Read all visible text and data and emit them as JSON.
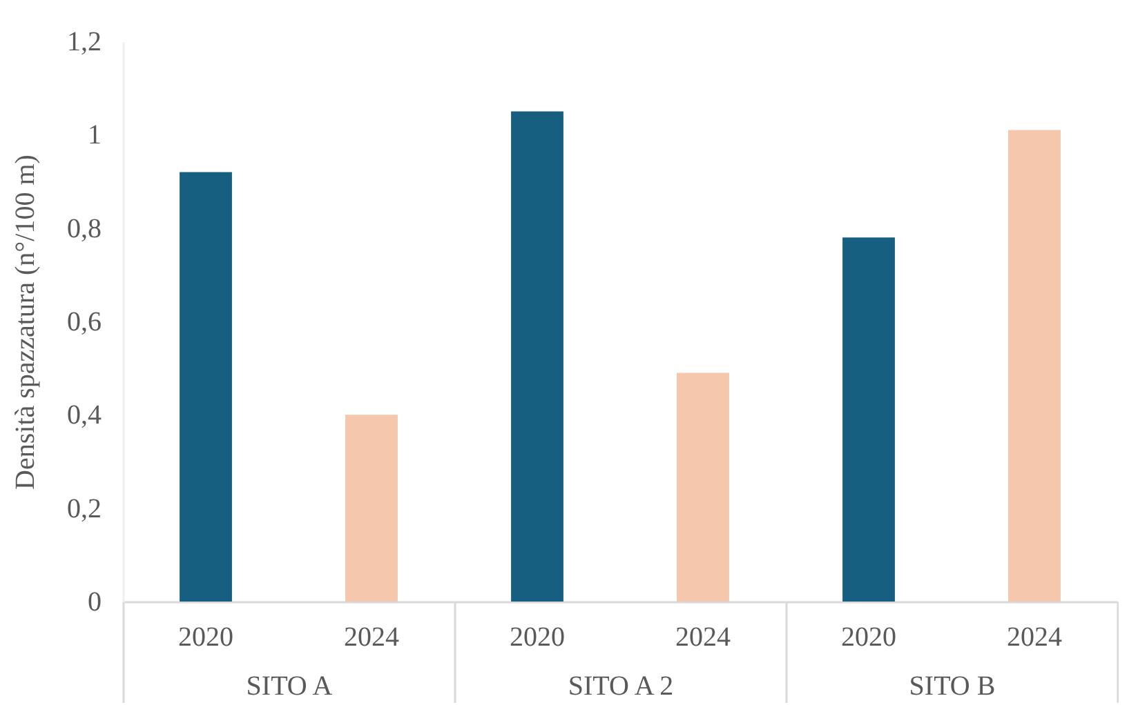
{
  "chart_data": {
    "type": "bar",
    "ylabel": "Densità spazzatura  (n°/100 m)",
    "categories": [
      "SITO A",
      "SITO A  2",
      "SITO B"
    ],
    "series": [
      {
        "name": "2020",
        "color": "#175f80",
        "values": [
          0.92,
          1.05,
          0.78
        ]
      },
      {
        "name": "2024",
        "color": "#f5c7ad",
        "values": [
          0.4,
          0.49,
          1.01
        ]
      }
    ],
    "ylim": [
      0,
      1.2
    ],
    "yticks": [
      0,
      {
        "value": 0.2,
        "label": "0,2"
      },
      {
        "value": 0.4,
        "label": "0,4"
      },
      {
        "value": 0.6,
        "label": "0,6"
      },
      {
        "value": 0.8,
        "label": "0,8"
      },
      1,
      {
        "value": 1.2,
        "label": "1,2"
      }
    ]
  }
}
